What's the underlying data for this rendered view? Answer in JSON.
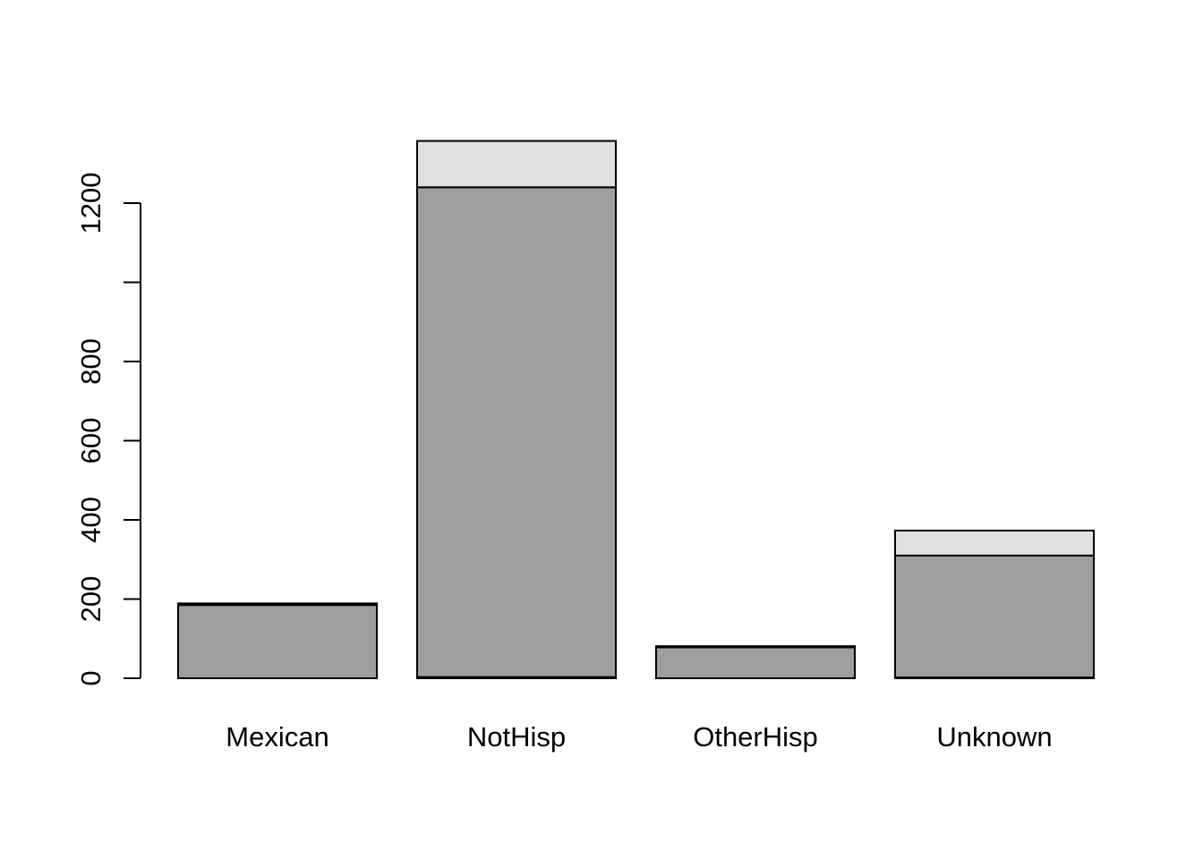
{
  "chart_data": {
    "type": "bar",
    "stacked": true,
    "categories": [
      "Mexican",
      "NotHisp",
      "OtherHisp",
      "Unknown"
    ],
    "series": [
      {
        "values": [
          0,
          3,
          0,
          2
        ],
        "color": "#4d4d4d"
      },
      {
        "values": [
          185,
          1237,
          78,
          308
        ],
        "color": "#9e9e9e"
      },
      {
        "values": [
          4,
          117,
          3,
          63
        ],
        "color": "#e0e0e0"
      }
    ],
    "yaxis": {
      "ticks": [
        0,
        200,
        400,
        600,
        800,
        1000,
        1200
      ],
      "labeled_ticks": [
        "0",
        "200",
        "400",
        "600",
        "800",
        "",
        "1200"
      ],
      "range": [
        0,
        1200
      ]
    },
    "ylim": [
      0,
      1366
    ],
    "title": "",
    "xlabel": "",
    "ylabel": "",
    "grid": false,
    "legend": "none"
  }
}
